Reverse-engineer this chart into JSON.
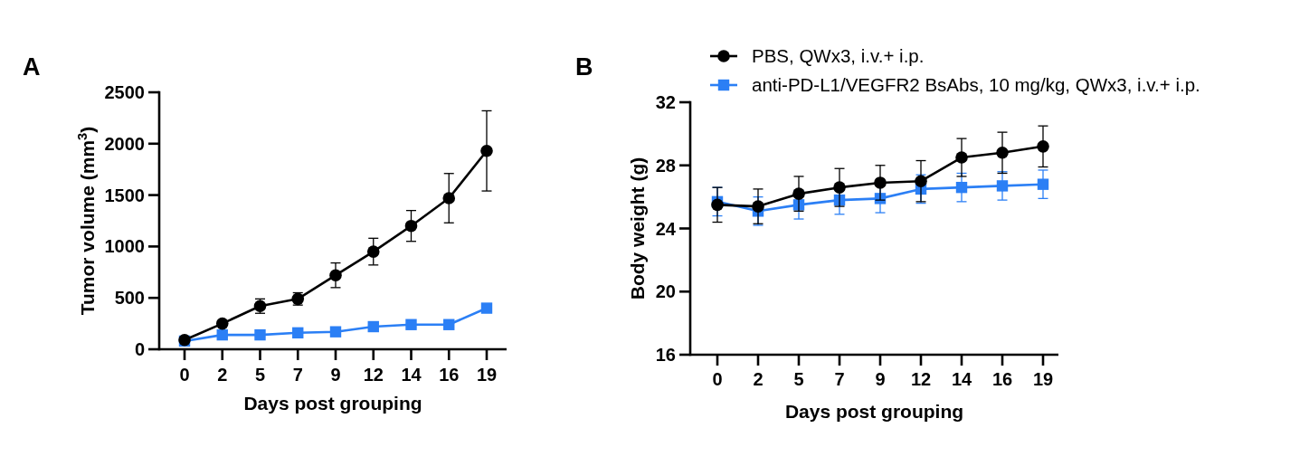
{
  "chart_data": [
    {
      "type": "line",
      "title": "A",
      "xlabel": "Days post grouping",
      "ylabel": "Tumor volume (mm$^{3}$)",
      "categories": [
        "0",
        "2",
        "5",
        "7",
        "9",
        "12",
        "14",
        "16",
        "19"
      ],
      "ylim": [
        0,
        2500
      ],
      "yticks": [
        0,
        500,
        1000,
        1500,
        2000,
        2500
      ],
      "line_style": "solid",
      "series": [
        {
          "color": "#000000",
          "marker": "circle",
          "values": [
            90,
            250,
            420,
            490,
            720,
            950,
            1200,
            1470,
            1930
          ],
          "errors": [
            20,
            20,
            70,
            60,
            120,
            130,
            150,
            240,
            390
          ]
        },
        {
          "color": "#2b7ff5",
          "marker": "square",
          "values": [
            80,
            140,
            140,
            160,
            170,
            220,
            240,
            240,
            400
          ]
        }
      ]
    },
    {
      "type": "line",
      "title": "B",
      "xlabel": "Days post grouping",
      "ylabel": "Body weight (g)",
      "categories": [
        "0",
        "2",
        "5",
        "7",
        "9",
        "12",
        "14",
        "16",
        "19"
      ],
      "ylim": [
        16,
        32
      ],
      "yticks": [
        16,
        20,
        24,
        28,
        32
      ],
      "legend": "top",
      "line_style": "solid",
      "series": [
        {
          "name": "PBS, QWx3, i.v.+ i.p.",
          "color": "#000000",
          "marker": "circle",
          "values": [
            25.5,
            25.4,
            26.2,
            26.6,
            26.9,
            27.0,
            28.5,
            28.8,
            29.2
          ],
          "errors": [
            1.1,
            1.1,
            1.1,
            1.2,
            1.1,
            1.3,
            1.2,
            1.3,
            1.3
          ]
        },
        {
          "name": "anti-PD-L1/VEGFR2 BsAbs, 10 mg/kg, QWx3, i.v.+ i.p.",
          "color": "#2b7ff5",
          "marker": "square",
          "values": [
            25.7,
            25.1,
            25.5,
            25.8,
            25.9,
            26.5,
            26.6,
            26.7,
            26.8
          ],
          "errors": [
            0.9,
            0.9,
            0.9,
            0.9,
            0.9,
            0.9,
            0.9,
            0.9,
            0.9
          ]
        }
      ]
    }
  ]
}
